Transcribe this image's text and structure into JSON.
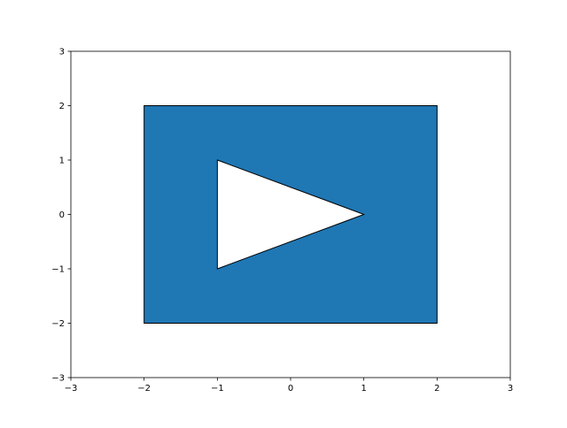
{
  "chart_data": {
    "type": "patch",
    "title": "",
    "xlabel": "",
    "ylabel": "",
    "xlim": [
      -3,
      3
    ],
    "ylim": [
      -3,
      3
    ],
    "xticks": [
      -3,
      -2,
      -1,
      0,
      1,
      2,
      3
    ],
    "yticks": [
      -3,
      -2,
      -1,
      0,
      1,
      2,
      3
    ],
    "xtick_labels": [
      "−3",
      "−2",
      "−1",
      "0",
      "1",
      "2",
      "3"
    ],
    "ytick_labels": [
      "−3",
      "−2",
      "−1",
      "0",
      "1",
      "2",
      "3"
    ],
    "grid": false,
    "legend": false,
    "shapes": [
      {
        "name": "rectangle",
        "fill": "#1f77b4",
        "edge": "#000000",
        "vertices": [
          [
            -2,
            -2
          ],
          [
            2,
            -2
          ],
          [
            2,
            2
          ],
          [
            -2,
            2
          ]
        ]
      },
      {
        "name": "triangle-hole",
        "fill": "#ffffff",
        "edge": "#000000",
        "vertices": [
          [
            -1,
            -1
          ],
          [
            1,
            0
          ],
          [
            -1,
            1
          ]
        ]
      }
    ]
  }
}
